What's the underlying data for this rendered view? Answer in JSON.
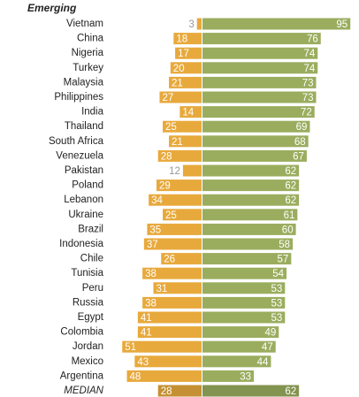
{
  "chart_data": {
    "type": "diverging-bar",
    "title": "Emerging",
    "categories": [
      "Vietnam",
      "China",
      "Nigeria",
      "Turkey",
      "Malaysia",
      "Philippines",
      "India",
      "Thailand",
      "South Africa",
      "Venezuela",
      "Pakistan",
      "Poland",
      "Lebanon",
      "Ukraine",
      "Brazil",
      "Indonesia",
      "Chile",
      "Tunisia",
      "Peru",
      "Russia",
      "Egypt",
      "Colombia",
      "Jordan",
      "Mexico",
      "Argentina",
      "MEDIAN"
    ],
    "series": [
      {
        "color": "#e8a93c",
        "values": [
          3,
          18,
          17,
          20,
          21,
          27,
          14,
          25,
          21,
          28,
          12,
          29,
          34,
          25,
          35,
          37,
          26,
          38,
          31,
          38,
          41,
          41,
          51,
          43,
          48,
          28
        ]
      },
      {
        "color": "#9aad5e",
        "values": [
          95,
          76,
          74,
          74,
          73,
          73,
          72,
          69,
          68,
          67,
          62,
          62,
          62,
          61,
          60,
          58,
          57,
          54,
          53,
          53,
          53,
          49,
          47,
          44,
          33,
          62
        ]
      }
    ]
  }
}
